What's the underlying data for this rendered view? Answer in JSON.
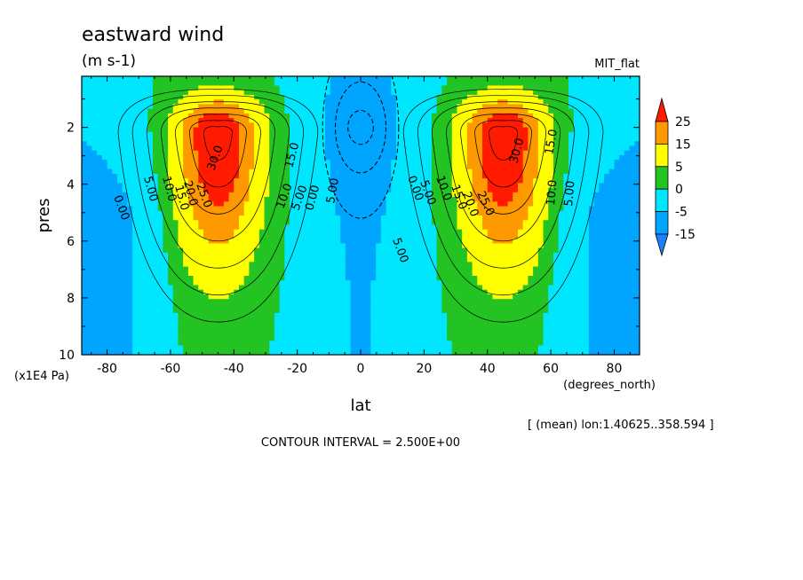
{
  "chart_data": {
    "type": "heatmap",
    "title": "eastward wind",
    "units": "(m s-1)",
    "model": "MIT_flat",
    "xlabel": "lat",
    "x_units": "(degrees_north)",
    "ylabel": "pres",
    "y_units": "(x1E4 Pa)",
    "xlim": [
      -88,
      88
    ],
    "ylim": [
      10,
      0.2
    ],
    "y_inverted": true,
    "x_ticks": [
      -80,
      -60,
      -40,
      -20,
      0,
      20,
      40,
      60,
      80
    ],
    "x_tick_labels": [
      "-80",
      "-60",
      "-40",
      "-20",
      "0",
      "20",
      "40",
      "60",
      "80"
    ],
    "y_ticks": [
      2,
      4,
      6,
      8,
      10
    ],
    "y_tick_labels": [
      "2",
      "4",
      "6",
      "8",
      "10"
    ],
    "averaging_note": "[ (mean) lon:1.40625..358.594 ]",
    "contour_interval_text": "CONTOUR INTERVAL = 2.500E+00",
    "contour_labels": [
      "0.00",
      "5.00",
      "10.0",
      "15.0",
      "20.0",
      "25.0",
      "30.0",
      "5.00",
      "10.0",
      "15.0",
      "0.00",
      "5.00",
      "0.00",
      "5.00",
      "10.0",
      "15.0",
      "20.0",
      "25.0",
      "30.0",
      "15.0",
      "10.0",
      "5.00",
      "5.00"
    ],
    "colorbar": {
      "levels": [
        -15,
        -5,
        0,
        5,
        15,
        25
      ],
      "labels": [
        "25",
        "15",
        "5",
        "0",
        "-5",
        "-15"
      ],
      "colors": {
        "below_-15": "#1e7fff",
        "-15_-5": "#00a5ff",
        "-5_0": "#00e6ff",
        "0_5": "#22c322",
        "5_15": "#ffff00",
        "15_25": "#ff9900",
        "above_25": "#ff1a00"
      }
    },
    "field_description": {
      "jets": [
        {
          "lat": -45,
          "pres": 2.2,
          "u": 33
        },
        {
          "lat": 45,
          "pres": 2.2,
          "u": 33
        }
      ],
      "equatorial_easterly_min": {
        "lat": 0,
        "pres": 2.0,
        "u": -8
      }
    }
  }
}
